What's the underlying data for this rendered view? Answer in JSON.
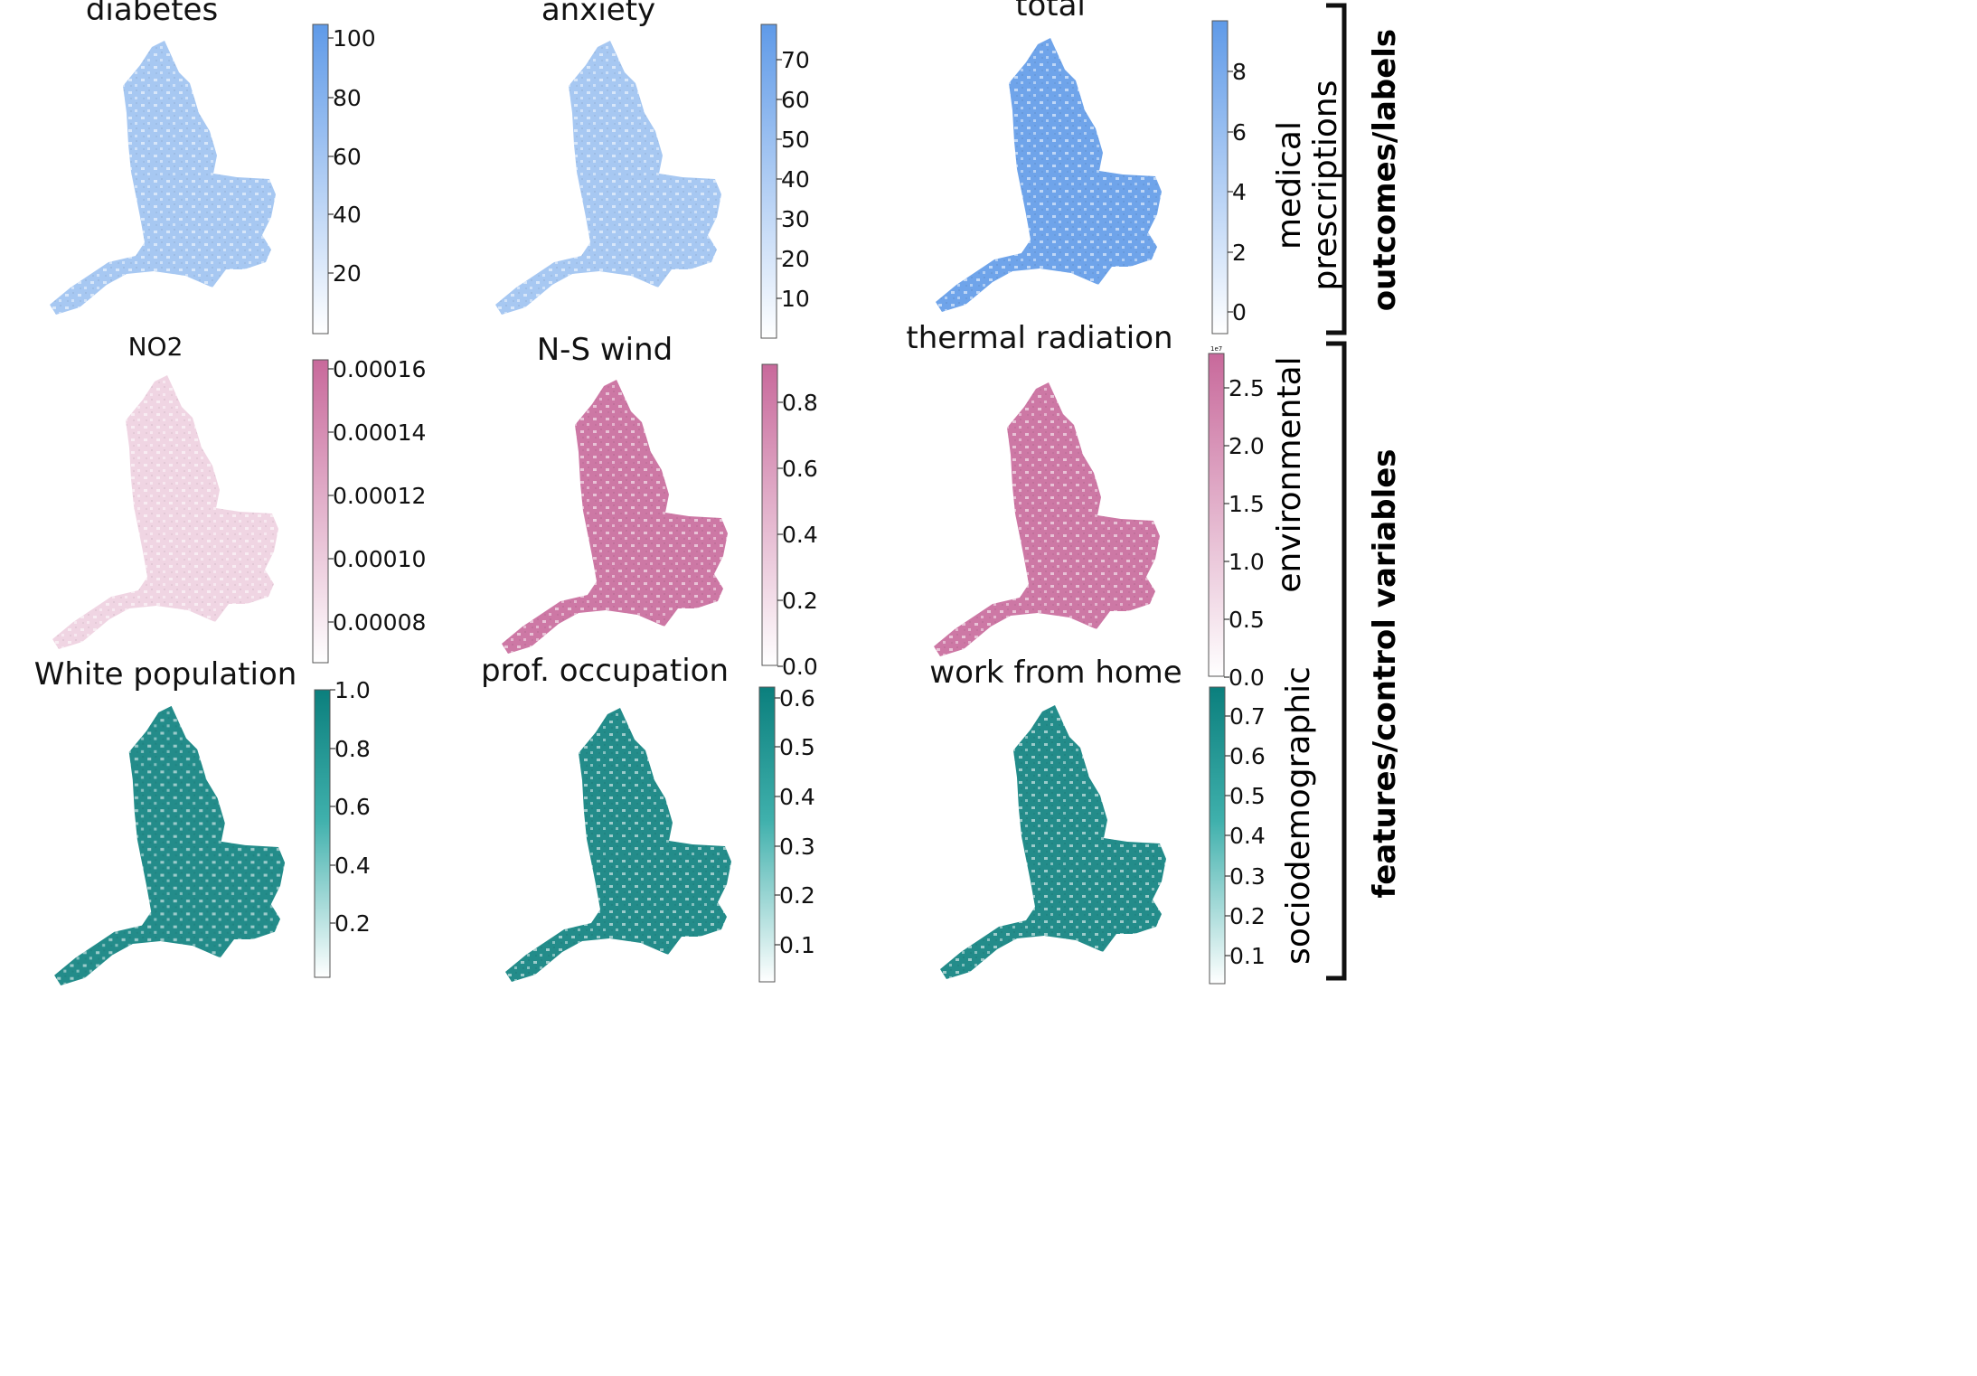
{
  "panels": [
    {
      "id": "diabetes",
      "title": "diabetes",
      "ticks": [
        "100",
        "80",
        "60",
        "40",
        "20"
      ],
      "theme": "blue",
      "dim": false
    },
    {
      "id": "anxiety",
      "title": "anxiety",
      "ticks": [
        "70",
        "60",
        "50",
        "40",
        "30",
        "20",
        "10"
      ],
      "theme": "blue",
      "dim": false
    },
    {
      "id": "total",
      "title": "total",
      "ticks": [
        "8",
        "6",
        "4",
        "2",
        "0"
      ],
      "theme": "blue",
      "dim": false
    },
    {
      "id": "no2",
      "title": "NO2",
      "ticks": [
        "0.00016",
        "0.00014",
        "0.00012",
        "0.00010",
        "0.00008"
      ],
      "theme": "pink",
      "dim": true
    },
    {
      "id": "ns-wind",
      "title": "N-S wind",
      "ticks": [
        "0.8",
        "0.6",
        "0.4",
        "0.2",
        "0.0"
      ],
      "theme": "pink",
      "dim": false
    },
    {
      "id": "thermal-radiation",
      "title": "thermal radiation",
      "ticks": [
        "2.5",
        "2.0",
        "1.5",
        "1.0",
        "0.5",
        "0.0"
      ],
      "theme": "pink",
      "dim": false,
      "exponent": "1e7"
    },
    {
      "id": "white-population",
      "title": "White population",
      "ticks": [
        "1.0",
        "0.8",
        "0.6",
        "0.4",
        "0.2"
      ],
      "theme": "teal",
      "dim": false
    },
    {
      "id": "prof-occupation",
      "title": "prof. occupation",
      "ticks": [
        "0.6",
        "0.5",
        "0.4",
        "0.3",
        "0.2",
        "0.1"
      ],
      "theme": "teal",
      "dim": false
    },
    {
      "id": "work-from-home",
      "title": "work from home",
      "ticks": [
        "0.7",
        "0.6",
        "0.5",
        "0.4",
        "0.3",
        "0.2",
        "0.1"
      ],
      "theme": "teal",
      "dim": false
    }
  ],
  "row_labels": {
    "medical_line1": "medical",
    "medical_line2": "prescriptions",
    "environmental": "environmental",
    "sociodemographic": "sociodemographic"
  },
  "group_labels": {
    "outcomes": "outcomes/labels",
    "features": "features/control variables"
  },
  "colors": {
    "blue": "#5f9ae8",
    "pink": "#c8699b",
    "teal": "#0b7f7d"
  }
}
